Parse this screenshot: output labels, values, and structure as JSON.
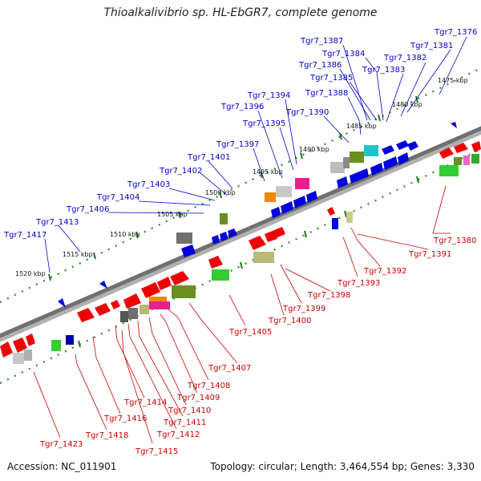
{
  "title": "Thioalkalivibrio sp. HL-EbGR7, complete genome",
  "footer": {
    "accession": "Accession: NC_011901",
    "info": "Topology: circular; Length: 3,464,554 bp; Genes: 3,330"
  },
  "colors": {
    "forward_gene": "#0000dd",
    "reverse_gene": "#ee0000",
    "backbone": "#808080",
    "kbp_dots": "#2a8a2a",
    "forward_label": "#0000cc",
    "reverse_label": "#cc0000"
  },
  "kbp_ticks": [
    "1475 kbp",
    "1480 kbp",
    "1485 kbp",
    "1490 kbp",
    "1495 kbp",
    "1500 kbp",
    "1505 kbp",
    "1510 kbp",
    "1515 kbp",
    "1520 kbp"
  ],
  "forward_labels": [
    "Tgr7_1376",
    "Tgr7_1381",
    "Tgr7_1382",
    "Tgr7_1383",
    "Tgr7_1384",
    "Tgr7_1385",
    "Tgr7_1386",
    "Tgr7_1387",
    "Tgr7_1388",
    "Tgr7_1390",
    "Tgr7_1394",
    "Tgr7_1395",
    "Tgr7_1396",
    "Tgr7_1397",
    "Tgr7_1401",
    "Tgr7_1402",
    "Tgr7_1403",
    "Tgr7_1404",
    "Tgr7_1406",
    "Tgr7_1413",
    "Tgr7_1417"
  ],
  "reverse_labels": [
    "Tgr7_1380",
    "Tgr7_1391",
    "Tgr7_1392",
    "Tgr7_1393",
    "Tgr7_1398",
    "Tgr7_1399",
    "Tgr7_1400",
    "Tgr7_1405",
    "Tgr7_1407",
    "Tgr7_1408",
    "Tgr7_1409",
    "Tgr7_1410",
    "Tgr7_1411",
    "Tgr7_1412",
    "Tgr7_1414",
    "Tgr7_1415",
    "Tgr7_1416",
    "Tgr7_1418",
    "Tgr7_1423"
  ]
}
